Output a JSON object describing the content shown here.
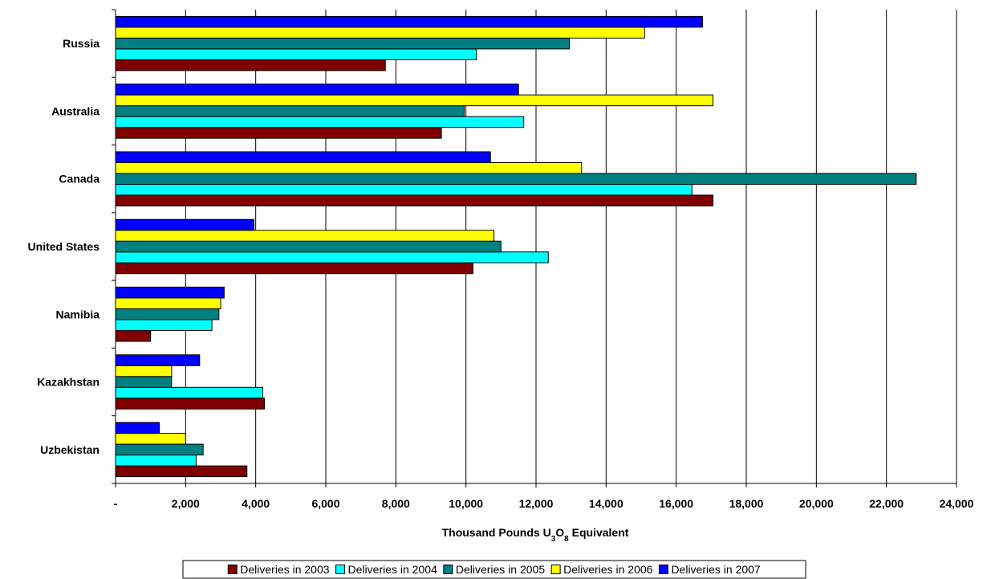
{
  "chart_data": {
    "type": "bar",
    "orientation": "horizontal",
    "categories": [
      "Russia",
      "Australia",
      "Canada",
      "United States",
      "Namibia",
      "Kazakhstan",
      "Uzbekistan"
    ],
    "series": [
      {
        "name": "Deliveries in 2003",
        "color": "#800000",
        "values": [
          7700,
          9300,
          17050,
          10200,
          1000,
          4250,
          3750
        ]
      },
      {
        "name": "Deliveries in 2004",
        "color": "#00ffff",
        "values": [
          10300,
          11650,
          16450,
          12350,
          2750,
          4200,
          2300
        ]
      },
      {
        "name": "Deliveries in 2005",
        "color": "#008080",
        "values": [
          12950,
          9950,
          22850,
          11000,
          2950,
          1600,
          2500
        ]
      },
      {
        "name": "Deliveries in 2006",
        "color": "#ffff00",
        "values": [
          15100,
          17050,
          13300,
          10800,
          3000,
          1600,
          2000
        ]
      },
      {
        "name": "Deliveries in 2007",
        "color": "#0000ff",
        "values": [
          16750,
          11500,
          10700,
          3950,
          3100,
          2400,
          1250
        ]
      }
    ],
    "xlim": [
      0,
      24000
    ],
    "xticks": [
      "-",
      "2,000",
      "4,000",
      "6,000",
      "8,000",
      "10,000",
      "12,000",
      "14,000",
      "16,000",
      "18,000",
      "20,000",
      "22,000",
      "24,000"
    ],
    "xlabel": {
      "main": "Thousand Pounds U",
      "sub1": "3",
      "mid": "O",
      "sub2": "8",
      "tail": " Equivalent"
    },
    "ylabel": "",
    "grid": "vertical",
    "legend": "bottom"
  }
}
